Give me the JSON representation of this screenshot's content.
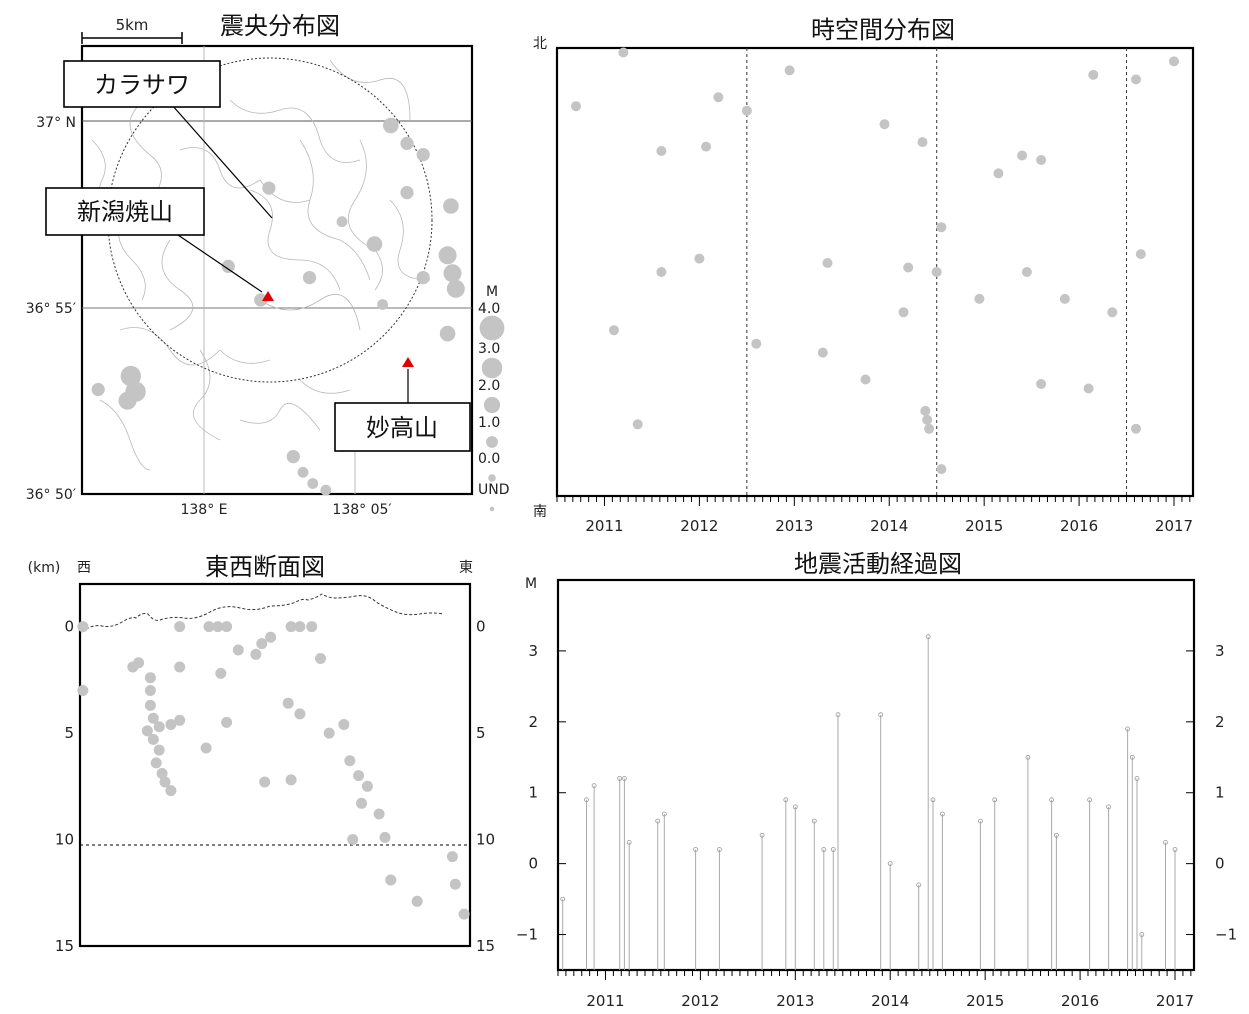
{
  "chart_data": [
    {
      "type": "scatter",
      "title": "震央分布図",
      "scale_label": "5km",
      "y_ticks": [
        "37° N",
        "36° 55′",
        "36° 50′"
      ],
      "x_ticks": [
        "138° E",
        "138° 05′"
      ],
      "legend_title": "M",
      "legend_labels": [
        "4.0",
        "3.0",
        "2.0",
        "1.0",
        "0.0",
        "UND"
      ],
      "callouts": [
        "カラサワ",
        "新潟焼山",
        "妙高山"
      ],
      "volcano_color": "#e00000",
      "event_color": "#c4c4c4",
      "points": [
        {
          "lon": 138.045,
          "lat": 36.97,
          "m": 1.0
        },
        {
          "lon": 138.09,
          "lat": 36.955,
          "m": 0.5
        },
        {
          "lon": 138.11,
          "lat": 36.945,
          "m": 1.5
        },
        {
          "lon": 138.07,
          "lat": 36.93,
          "m": 1.0
        },
        {
          "lon": 138.115,
          "lat": 36.918,
          "m": 0.5
        },
        {
          "lon": 138.14,
          "lat": 36.93,
          "m": 1.0
        },
        {
          "lon": 138.155,
          "lat": 36.94,
          "m": 2.0
        },
        {
          "lon": 138.158,
          "lat": 36.932,
          "m": 2.0
        },
        {
          "lon": 138.16,
          "lat": 36.925,
          "m": 2.0
        },
        {
          "lon": 138.155,
          "lat": 36.905,
          "m": 1.5
        },
        {
          "lon": 138.13,
          "lat": 36.99,
          "m": 1.0
        },
        {
          "lon": 138.14,
          "lat": 36.985,
          "m": 1.0
        },
        {
          "lon": 138.12,
          "lat": 36.998,
          "m": 1.5
        },
        {
          "lon": 138.13,
          "lat": 36.968,
          "m": 1.0
        },
        {
          "lon": 138.157,
          "lat": 36.962,
          "m": 1.5
        },
        {
          "lon": 137.96,
          "lat": 36.886,
          "m": 2.5
        },
        {
          "lon": 137.963,
          "lat": 36.879,
          "m": 2.5
        },
        {
          "lon": 137.958,
          "lat": 36.875,
          "m": 2.0
        },
        {
          "lon": 138.1,
          "lat": 36.861,
          "m": 2.0
        },
        {
          "lon": 138.11,
          "lat": 36.858,
          "m": 1.5
        },
        {
          "lon": 138.09,
          "lat": 36.855,
          "m": 1.0
        },
        {
          "lon": 138.06,
          "lat": 36.85,
          "m": 1.0
        },
        {
          "lon": 138.066,
          "lat": 36.843,
          "m": 0.5
        },
        {
          "lon": 138.072,
          "lat": 36.838,
          "m": 0.5
        },
        {
          "lon": 138.08,
          "lat": 36.835,
          "m": 0.5
        },
        {
          "lon": 138.02,
          "lat": 36.935,
          "m": 1.0
        },
        {
          "lon": 138.0,
          "lat": 36.96,
          "m": 0.5
        },
        {
          "lon": 138.04,
          "lat": 36.92,
          "m": 1.0
        },
        {
          "lon": 137.94,
          "lat": 36.88,
          "m": 1.0
        }
      ]
    },
    {
      "type": "scatter",
      "title": "時空間分布図",
      "y_top_label": "北",
      "y_bottom_label": "南",
      "x_ticks": [
        "2011",
        "2012",
        "2013",
        "2014",
        "2015",
        "2016",
        "2017"
      ],
      "x_range": [
        2010.5,
        2017.2
      ],
      "vertical_dashed_lines": [
        2012.5,
        2014.5,
        2016.5
      ],
      "points": [
        {
          "t": 2010.7,
          "ns": 0.87
        },
        {
          "t": 2011.2,
          "ns": 0.99
        },
        {
          "t": 2011.1,
          "ns": 0.37
        },
        {
          "t": 2011.35,
          "ns": 0.16
        },
        {
          "t": 2011.6,
          "ns": 0.77
        },
        {
          "t": 2011.6,
          "ns": 0.5
        },
        {
          "t": 2012.0,
          "ns": 0.53
        },
        {
          "t": 2012.07,
          "ns": 0.78
        },
        {
          "t": 2012.2,
          "ns": 0.89
        },
        {
          "t": 2012.5,
          "ns": 0.86
        },
        {
          "t": 2012.6,
          "ns": 0.34
        },
        {
          "t": 2012.95,
          "ns": 0.95
        },
        {
          "t": 2013.3,
          "ns": 0.32
        },
        {
          "t": 2013.35,
          "ns": 0.52
        },
        {
          "t": 2013.75,
          "ns": 0.26
        },
        {
          "t": 2013.95,
          "ns": 0.83
        },
        {
          "t": 2014.15,
          "ns": 0.41
        },
        {
          "t": 2014.2,
          "ns": 0.51
        },
        {
          "t": 2014.35,
          "ns": 0.79
        },
        {
          "t": 2014.38,
          "ns": 0.19
        },
        {
          "t": 2014.4,
          "ns": 0.17
        },
        {
          "t": 2014.42,
          "ns": 0.15
        },
        {
          "t": 2014.5,
          "ns": 0.5
        },
        {
          "t": 2014.55,
          "ns": 0.6
        },
        {
          "t": 2014.55,
          "ns": 0.06
        },
        {
          "t": 2014.95,
          "ns": 0.44
        },
        {
          "t": 2015.15,
          "ns": 0.72
        },
        {
          "t": 2015.4,
          "ns": 0.76
        },
        {
          "t": 2015.6,
          "ns": 0.75
        },
        {
          "t": 2015.45,
          "ns": 0.5
        },
        {
          "t": 2015.6,
          "ns": 0.25
        },
        {
          "t": 2015.85,
          "ns": 0.44
        },
        {
          "t": 2016.1,
          "ns": 0.24
        },
        {
          "t": 2016.15,
          "ns": 0.94
        },
        {
          "t": 2016.35,
          "ns": 0.41
        },
        {
          "t": 2016.6,
          "ns": 0.93
        },
        {
          "t": 2016.65,
          "ns": 0.54
        },
        {
          "t": 2016.6,
          "ns": 0.15
        },
        {
          "t": 2017.0,
          "ns": 0.97
        }
      ]
    },
    {
      "type": "scatter",
      "title": "東西断面図",
      "y_unit_label": "(km)",
      "west_label": "西",
      "east_label": "東",
      "y_ticks": [
        "0",
        "5",
        "10",
        "15"
      ],
      "y_range": [
        -2,
        15
      ],
      "dashed_depth": 10,
      "points": [
        {
          "x": 0.01,
          "d": 0.0
        },
        {
          "x": 0.01,
          "d": 3.0
        },
        {
          "x": 0.18,
          "d": 1.9
        },
        {
          "x": 0.2,
          "d": 1.7
        },
        {
          "x": 0.24,
          "d": 2.4
        },
        {
          "x": 0.24,
          "d": 3.0
        },
        {
          "x": 0.24,
          "d": 3.7
        },
        {
          "x": 0.25,
          "d": 4.3
        },
        {
          "x": 0.23,
          "d": 4.9
        },
        {
          "x": 0.25,
          "d": 5.3
        },
        {
          "x": 0.27,
          "d": 5.8
        },
        {
          "x": 0.26,
          "d": 6.4
        },
        {
          "x": 0.28,
          "d": 6.9
        },
        {
          "x": 0.29,
          "d": 7.3
        },
        {
          "x": 0.31,
          "d": 7.7
        },
        {
          "x": 0.27,
          "d": 4.7
        },
        {
          "x": 0.31,
          "d": 4.6
        },
        {
          "x": 0.34,
          "d": 4.4
        },
        {
          "x": 0.34,
          "d": 1.9
        },
        {
          "x": 0.34,
          "d": 0.0
        },
        {
          "x": 0.44,
          "d": 0.0
        },
        {
          "x": 0.47,
          "d": 0.0
        },
        {
          "x": 0.5,
          "d": 0.0
        },
        {
          "x": 0.48,
          "d": 2.2
        },
        {
          "x": 0.54,
          "d": 1.1
        },
        {
          "x": 0.6,
          "d": 1.3
        },
        {
          "x": 0.62,
          "d": 0.8
        },
        {
          "x": 0.65,
          "d": 0.5
        },
        {
          "x": 0.72,
          "d": 0.0
        },
        {
          "x": 0.75,
          "d": 0.0
        },
        {
          "x": 0.79,
          "d": 0.0
        },
        {
          "x": 0.82,
          "d": 1.5
        },
        {
          "x": 0.71,
          "d": 3.6
        },
        {
          "x": 0.75,
          "d": 4.1
        },
        {
          "x": 0.85,
          "d": 5.0
        },
        {
          "x": 0.9,
          "d": 4.6
        },
        {
          "x": 0.92,
          "d": 6.3
        },
        {
          "x": 0.95,
          "d": 7.0
        },
        {
          "x": 0.98,
          "d": 7.5
        },
        {
          "x": 0.96,
          "d": 8.3
        },
        {
          "x": 1.02,
          "d": 8.8
        },
        {
          "x": 1.04,
          "d": 9.9
        },
        {
          "x": 0.93,
          "d": 10.0
        },
        {
          "x": 1.06,
          "d": 11.9
        },
        {
          "x": 1.15,
          "d": 12.9
        },
        {
          "x": 1.27,
          "d": 10.8
        },
        {
          "x": 1.28,
          "d": 12.1
        },
        {
          "x": 1.31,
          "d": 13.5
        },
        {
          "x": 0.72,
          "d": 7.2
        },
        {
          "x": 0.63,
          "d": 7.3
        },
        {
          "x": 0.43,
          "d": 5.7
        },
        {
          "x": 0.5,
          "d": 4.5
        }
      ]
    },
    {
      "type": "bar",
      "title": "地震活動経過図",
      "y_unit_label": "M",
      "x_ticks": [
        "2011",
        "2012",
        "2013",
        "2014",
        "2015",
        "2016",
        "2017"
      ],
      "y_ticks": [
        "3",
        "2",
        "1",
        "0",
        "−1"
      ],
      "x_range": [
        2010.5,
        2017.2
      ],
      "y_range": [
        -1.5,
        4.0
      ],
      "events": [
        {
          "t": 2010.55,
          "m": -0.5
        },
        {
          "t": 2010.8,
          "m": 0.9
        },
        {
          "t": 2010.88,
          "m": 1.1
        },
        {
          "t": 2011.15,
          "m": 1.2
        },
        {
          "t": 2011.2,
          "m": 1.2
        },
        {
          "t": 2011.25,
          "m": 0.3
        },
        {
          "t": 2011.55,
          "m": 0.6
        },
        {
          "t": 2011.62,
          "m": 0.7
        },
        {
          "t": 2011.95,
          "m": 0.2
        },
        {
          "t": 2012.2,
          "m": 0.2
        },
        {
          "t": 2012.65,
          "m": 0.4
        },
        {
          "t": 2012.9,
          "m": 0.9
        },
        {
          "t": 2013.0,
          "m": 0.8
        },
        {
          "t": 2013.2,
          "m": 0.6
        },
        {
          "t": 2013.3,
          "m": 0.2
        },
        {
          "t": 2013.4,
          "m": 0.2
        },
        {
          "t": 2013.45,
          "m": 2.1
        },
        {
          "t": 2013.9,
          "m": 2.1
        },
        {
          "t": 2014.0,
          "m": 0.0
        },
        {
          "t": 2014.3,
          "m": -0.3
        },
        {
          "t": 2014.4,
          "m": 3.2
        },
        {
          "t": 2014.45,
          "m": 0.9
        },
        {
          "t": 2014.55,
          "m": 0.7
        },
        {
          "t": 2014.95,
          "m": 0.6
        },
        {
          "t": 2015.1,
          "m": 0.9
        },
        {
          "t": 2015.45,
          "m": 1.5
        },
        {
          "t": 2015.7,
          "m": 0.9
        },
        {
          "t": 2015.75,
          "m": 0.4
        },
        {
          "t": 2016.1,
          "m": 0.9
        },
        {
          "t": 2016.3,
          "m": 0.8
        },
        {
          "t": 2016.5,
          "m": 1.9
        },
        {
          "t": 2016.55,
          "m": 1.5
        },
        {
          "t": 2016.6,
          "m": 1.2
        },
        {
          "t": 2016.65,
          "m": -1.0
        },
        {
          "t": 2016.9,
          "m": 0.3
        },
        {
          "t": 2017.0,
          "m": 0.2
        }
      ]
    }
  ]
}
